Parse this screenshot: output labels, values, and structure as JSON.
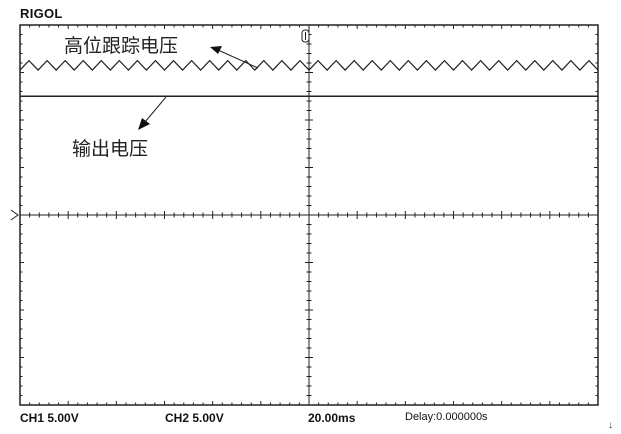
{
  "brand": "RIGOL",
  "status": {
    "ch1": "CH1  5.00V",
    "ch2": "CH2  5.00V",
    "timebase": "20.00ms",
    "delay": "Delay:0.000000s"
  },
  "corner_glyph": "↓",
  "chart_data": {
    "type": "line",
    "grid": {
      "x_divisions": 12,
      "y_divisions": 8,
      "gridlines": false,
      "ticks": true
    },
    "xlim": [
      -6,
      6
    ],
    "ylim": [
      -4,
      4
    ],
    "traces": [
      {
        "shape": "triangle",
        "level_div": 3.15,
        "peak_to_peak_div": 0.2,
        "cycles": 32
      },
      {
        "shape": "dc",
        "level_div": 2.5
      }
    ],
    "annotations": [
      {
        "text": "高位跟踪电压",
        "target": "triangle"
      },
      {
        "text": "输出电压",
        "target": "dc"
      }
    ],
    "colors": {
      "trace": "#222222",
      "frame": "#222222",
      "background": "#ffffff"
    }
  }
}
